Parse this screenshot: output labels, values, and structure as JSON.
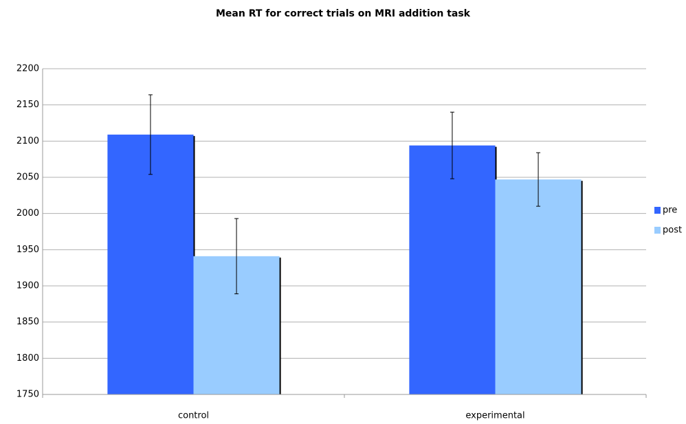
{
  "chart_data": {
    "type": "bar",
    "title": "Mean RT for correct trials on MRI addition task",
    "categories": [
      "control",
      "experimental"
    ],
    "series": [
      {
        "name": "pre",
        "color": "#3366ff",
        "values": [
          2109,
          2094
        ],
        "errors": [
          55,
          46
        ]
      },
      {
        "name": "post",
        "color": "#99ccff",
        "values": [
          1941,
          2047
        ],
        "errors": [
          52,
          37
        ]
      }
    ],
    "ylim": [
      1750,
      2200
    ],
    "yticks": [
      1750,
      1800,
      1850,
      1900,
      1950,
      2000,
      2050,
      2100,
      2150,
      2200
    ],
    "grid": true,
    "legend": "right"
  }
}
